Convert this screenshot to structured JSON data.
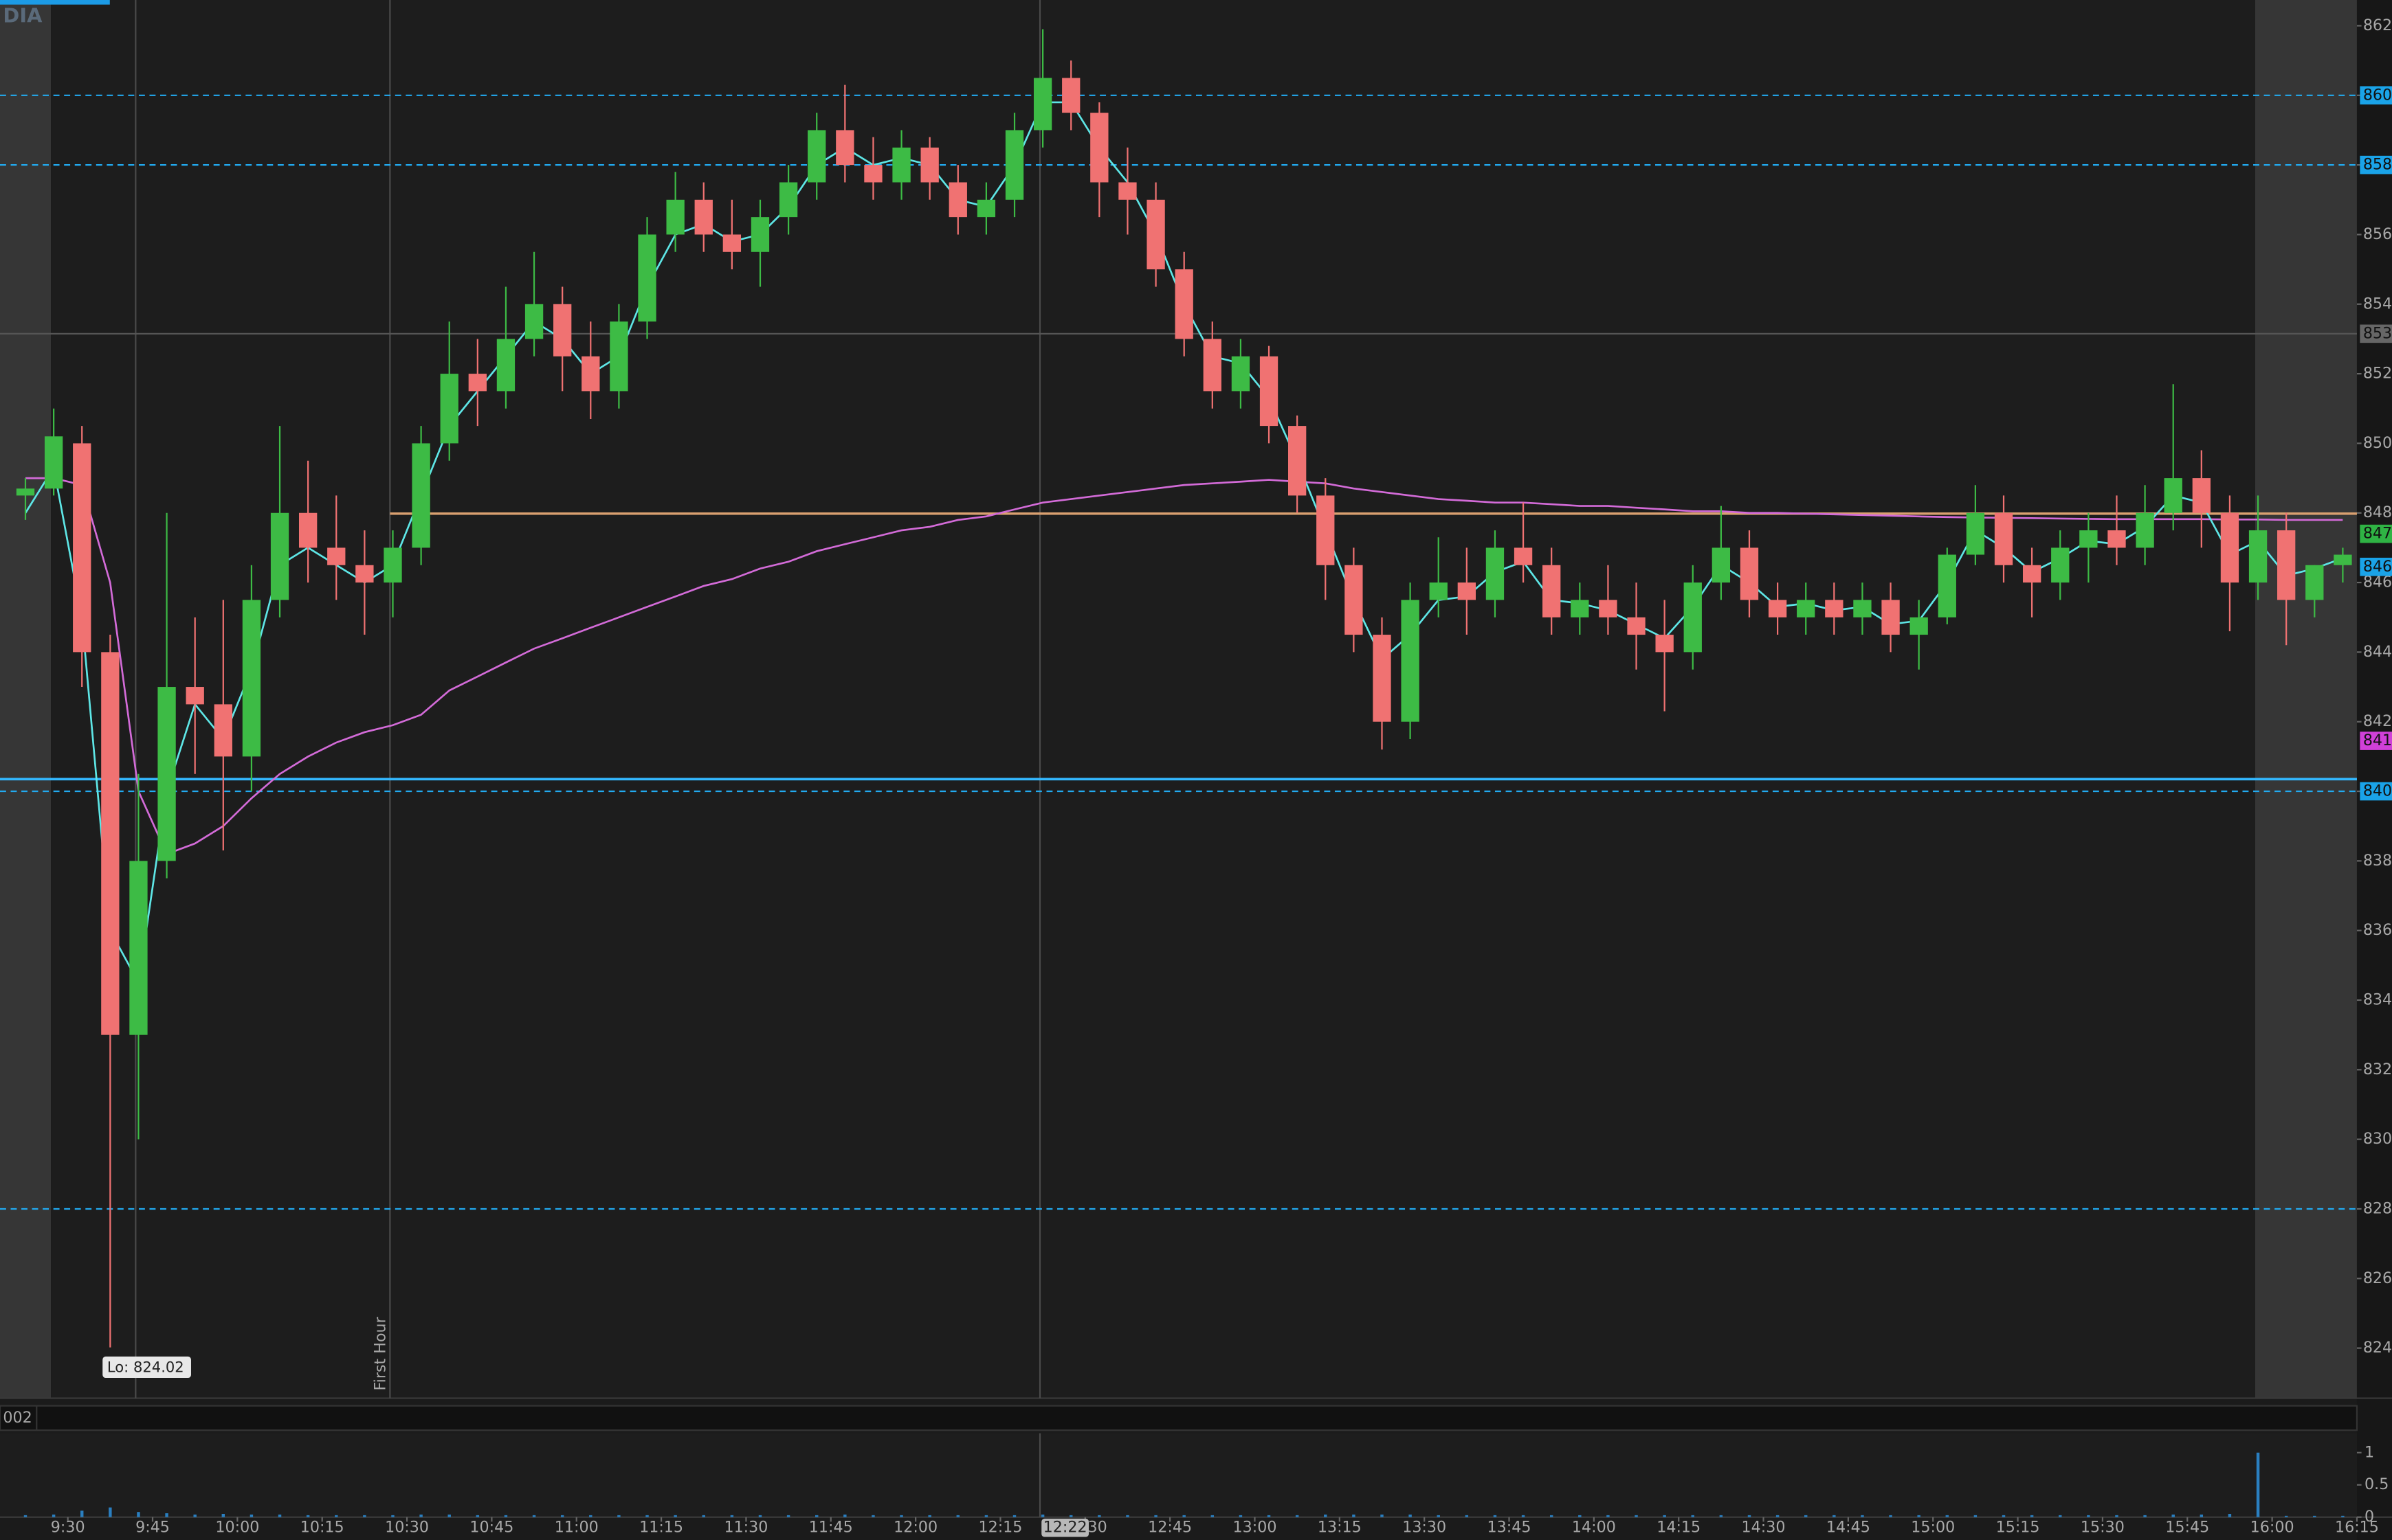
{
  "chart_data": {
    "type": "candlestick",
    "symbol": "DIA",
    "up_color": "#3dbb45",
    "down_color": "#f07272",
    "ema_color": "#5ee6e6",
    "vwap_color": "#d36bd8",
    "volume_color": "#2a7fc0",
    "xlim": [
      "9:18",
      "16:15"
    ],
    "xticks": [
      "9:30",
      "9:45",
      "10:00",
      "10:15",
      "10:30",
      "10:45",
      "11:00",
      "11:15",
      "11:30",
      "11:45",
      "12:00",
      "12:15",
      "12:30",
      "12:45",
      "13:00",
      "13:15",
      "13:30",
      "13:45",
      "14:00",
      "14:15",
      "14:30",
      "14:45",
      "15:00",
      "15:15",
      "15:30",
      "15:45",
      "16:00",
      "16:15"
    ],
    "ylim": [
      822.56,
      862.74
    ],
    "yticks": [
      824,
      826,
      828,
      830,
      832,
      834,
      836,
      838,
      840,
      842,
      844,
      846,
      848,
      850,
      852,
      854,
      856,
      858,
      860,
      862
    ],
    "volume_ylim": [
      0,
      1.3
    ],
    "volume_yticks": [
      0,
      0.5,
      1
    ],
    "shaded_ranges": [
      [
        "9:18",
        "9:27"
      ],
      [
        "15:57",
        "16:15"
      ]
    ],
    "levels": [
      {
        "value": 860,
        "color": "#22aaf0",
        "style": "dashed"
      },
      {
        "value": 858,
        "color": "#22aaf0",
        "style": "dashed"
      },
      {
        "value": 840,
        "color": "#22aaf0",
        "style": "dashed"
      },
      {
        "value": 828,
        "color": "#22aaf0",
        "style": "dashed"
      },
      {
        "value": 840.35,
        "color": "#33b8ff",
        "style": "solid"
      },
      {
        "value": 853.15,
        "color": "#555555",
        "style": "solid"
      },
      {
        "value": 847.98,
        "color": "#d9a070",
        "style": "solid",
        "from": "10:27"
      }
    ],
    "price_tags": [
      {
        "value": 860,
        "color": "#1aa3e8"
      },
      {
        "value": 858,
        "color": "#1aa3e8"
      },
      {
        "value": {
          "value": 853.15,
          "label": "853"
        },
        "color": "#666666"
      },
      {
        "value": {
          "value": 847.4,
          "label": "847"
        },
        "color": "#2fb344"
      },
      {
        "value": {
          "value": 846.45,
          "label": "846"
        },
        "color": "#1aa3e8"
      },
      {
        "value": {
          "value": 841.45,
          "label": "841"
        },
        "color": "#d040d8"
      },
      {
        "value": 840,
        "color": "#1aa3e8"
      }
    ],
    "vlines": [
      "9:42",
      "10:27",
      "12:22"
    ],
    "first_hour_label": "First Hour",
    "low_label": "Lo: 824.02",
    "crosshair_time": "12:22",
    "volume_label": "002",
    "candles": [
      {
        "x": "9:20",
        "open": 848.5,
        "high": 849,
        "low": 847.8,
        "close": 848.7,
        "ema": 848,
        "vwap": 849,
        "volume": 0.03
      },
      {
        "x": "9:25",
        "open": 848.7,
        "high": 851,
        "low": 848.5,
        "close": 850.2,
        "ema": 849.3,
        "vwap": 849,
        "volume": 0.04
      },
      {
        "x": "9:30",
        "open": 850,
        "high": 850.5,
        "low": 843,
        "close": 844,
        "ema": 845,
        "vwap": 848.8,
        "volume": 0.1
      },
      {
        "x": "9:35",
        "open": 844,
        "high": 844.5,
        "low": 824.02,
        "close": 833,
        "ema": 836,
        "vwap": 846,
        "volume": 0.15
      },
      {
        "x": "9:40",
        "open": 833,
        "high": 840.5,
        "low": 830,
        "close": 838,
        "ema": 834.5,
        "vwap": 840,
        "volume": 0.08
      },
      {
        "x": "9:45",
        "open": 838,
        "high": 848,
        "low": 837.5,
        "close": 843,
        "ema": 840,
        "vwap": 838.2,
        "volume": 0.06
      },
      {
        "x": "9:50",
        "open": 843,
        "high": 845,
        "low": 840.5,
        "close": 842.5,
        "ema": 842.5,
        "vwap": 838.5,
        "volume": 0.04
      },
      {
        "x": "9:55",
        "open": 842.5,
        "high": 845.5,
        "low": 838.3,
        "close": 841,
        "ema": 841.5,
        "vwap": 839,
        "volume": 0.05
      },
      {
        "x": "10:00",
        "open": 841,
        "high": 846.5,
        "low": 840,
        "close": 845.5,
        "ema": 843.5,
        "vwap": 839.8,
        "volume": 0.04
      },
      {
        "x": "10:05",
        "open": 845.5,
        "high": 850.5,
        "low": 845,
        "close": 848,
        "ema": 846.5,
        "vwap": 840.5,
        "volume": 0.04
      },
      {
        "x": "10:10",
        "open": 848,
        "high": 849.5,
        "low": 846,
        "close": 847,
        "ema": 847,
        "vwap": 841,
        "volume": 0.03
      },
      {
        "x": "10:15",
        "open": 847,
        "high": 848.5,
        "low": 845.5,
        "close": 846.5,
        "ema": 846.5,
        "vwap": 841.4,
        "volume": 0.03
      },
      {
        "x": "10:20",
        "open": 846.5,
        "high": 847.5,
        "low": 844.5,
        "close": 846,
        "ema": 846,
        "vwap": 841.7,
        "volume": 0.03
      },
      {
        "x": "10:25",
        "open": 846,
        "high": 847.5,
        "low": 845,
        "close": 847,
        "ema": 846.5,
        "vwap": 841.9,
        "volume": 0.03
      },
      {
        "x": "10:30",
        "open": 847,
        "high": 850.5,
        "low": 846.5,
        "close": 850,
        "ema": 848.5,
        "vwap": 842.2,
        "volume": 0.04
      },
      {
        "x": "10:35",
        "open": 850,
        "high": 853.5,
        "low": 849.5,
        "close": 852,
        "ema": 850.5,
        "vwap": 842.9,
        "volume": 0.04
      },
      {
        "x": "10:40",
        "open": 852,
        "high": 853,
        "low": 850.5,
        "close": 851.5,
        "ema": 851.5,
        "vwap": 843.3,
        "volume": 0.03
      },
      {
        "x": "10:45",
        "open": 851.5,
        "high": 854.5,
        "low": 851,
        "close": 853,
        "ema": 852.5,
        "vwap": 843.7,
        "volume": 0.03
      },
      {
        "x": "10:50",
        "open": 853,
        "high": 855.5,
        "low": 852.5,
        "close": 854,
        "ema": 853.5,
        "vwap": 844.1,
        "volume": 0.03
      },
      {
        "x": "10:55",
        "open": 854,
        "high": 854.5,
        "low": 851.5,
        "close": 852.5,
        "ema": 853,
        "vwap": 844.4,
        "volume": 0.03
      },
      {
        "x": "11:00",
        "open": 852.5,
        "high": 853.5,
        "low": 850.7,
        "close": 851.5,
        "ema": 852,
        "vwap": 844.7,
        "volume": 0.03
      },
      {
        "x": "11:05",
        "open": 851.5,
        "high": 854,
        "low": 851,
        "close": 853.5,
        "ema": 852.5,
        "vwap": 845,
        "volume": 0.03
      },
      {
        "x": "11:10",
        "open": 853.5,
        "high": 856.5,
        "low": 853,
        "close": 856,
        "ema": 854.5,
        "vwap": 845.3,
        "volume": 0.03
      },
      {
        "x": "11:15",
        "open": 856,
        "high": 857.8,
        "low": 855.5,
        "close": 857,
        "ema": 856,
        "vwap": 845.6,
        "volume": 0.03
      },
      {
        "x": "11:20",
        "open": 857,
        "high": 857.5,
        "low": 855.5,
        "close": 856,
        "ema": 856.3,
        "vwap": 845.9,
        "volume": 0.03
      },
      {
        "x": "11:25",
        "open": 856,
        "high": 857,
        "low": 855,
        "close": 855.5,
        "ema": 855.8,
        "vwap": 846.1,
        "volume": 0.03
      },
      {
        "x": "11:30",
        "open": 855.5,
        "high": 857,
        "low": 854.5,
        "close": 856.5,
        "ema": 856,
        "vwap": 846.4,
        "volume": 0.03
      },
      {
        "x": "11:35",
        "open": 856.5,
        "high": 858,
        "low": 856,
        "close": 857.5,
        "ema": 856.8,
        "vwap": 846.6,
        "volume": 0.03
      },
      {
        "x": "11:40",
        "open": 857.5,
        "high": 859.5,
        "low": 857,
        "close": 859,
        "ema": 858,
        "vwap": 846.9,
        "volume": 0.03
      },
      {
        "x": "11:45",
        "open": 859,
        "high": 860.3,
        "low": 857.5,
        "close": 858,
        "ema": 858.5,
        "vwap": 847.1,
        "volume": 0.04
      },
      {
        "x": "11:50",
        "open": 858,
        "high": 858.8,
        "low": 857,
        "close": 857.5,
        "ema": 858,
        "vwap": 847.3,
        "volume": 0.03
      },
      {
        "x": "11:55",
        "open": 857.5,
        "high": 859,
        "low": 857,
        "close": 858.5,
        "ema": 858.2,
        "vwap": 847.5,
        "volume": 0.03
      },
      {
        "x": "12:00",
        "open": 858.5,
        "high": 858.8,
        "low": 857,
        "close": 857.5,
        "ema": 858,
        "vwap": 847.6,
        "volume": 0.03
      },
      {
        "x": "12:05",
        "open": 857.5,
        "high": 858,
        "low": 856,
        "close": 856.5,
        "ema": 857,
        "vwap": 847.8,
        "volume": 0.03
      },
      {
        "x": "12:10",
        "open": 856.5,
        "high": 857.5,
        "low": 856,
        "close": 857,
        "ema": 856.8,
        "vwap": 847.9,
        "volume": 0.03
      },
      {
        "x": "12:15",
        "open": 857,
        "high": 859.5,
        "low": 856.5,
        "close": 859,
        "ema": 858,
        "vwap": 848.1,
        "volume": 0.03
      },
      {
        "x": "12:20",
        "open": 859,
        "high": 861.9,
        "low": 858.5,
        "close": 860.5,
        "ema": 859.8,
        "vwap": 848.3,
        "volume": 0.04
      },
      {
        "x": "12:25",
        "open": 860.5,
        "high": 861,
        "low": 859,
        "close": 859.5,
        "ema": 859.8,
        "vwap": 848.4,
        "volume": 0.03
      },
      {
        "x": "12:30",
        "open": 859.5,
        "high": 859.8,
        "low": 856.5,
        "close": 857.5,
        "ema": 858.5,
        "vwap": 848.5,
        "volume": 0.03
      },
      {
        "x": "12:35",
        "open": 857.5,
        "high": 858.5,
        "low": 856,
        "close": 857,
        "ema": 857.5,
        "vwap": 848.6,
        "volume": 0.03
      },
      {
        "x": "12:40",
        "open": 857,
        "high": 857.5,
        "low": 854.5,
        "close": 855,
        "ema": 856,
        "vwap": 848.7,
        "volume": 0.03
      },
      {
        "x": "12:45",
        "open": 855,
        "high": 855.5,
        "low": 852.5,
        "close": 853,
        "ema": 854,
        "vwap": 848.8,
        "volume": 0.03
      },
      {
        "x": "12:50",
        "open": 853,
        "high": 853.5,
        "low": 851,
        "close": 851.5,
        "ema": 852.5,
        "vwap": 848.85,
        "volume": 0.03
      },
      {
        "x": "12:55",
        "open": 851.5,
        "high": 853,
        "low": 851,
        "close": 852.5,
        "ema": 852.3,
        "vwap": 848.9,
        "volume": 0.03
      },
      {
        "x": "13:00",
        "open": 852.5,
        "high": 852.8,
        "low": 850,
        "close": 850.5,
        "ema": 851.3,
        "vwap": 848.95,
        "volume": 0.03
      },
      {
        "x": "13:05",
        "open": 850.5,
        "high": 850.8,
        "low": 848,
        "close": 848.5,
        "ema": 849.5,
        "vwap": 848.9,
        "volume": 0.03
      },
      {
        "x": "13:10",
        "open": 848.5,
        "high": 849,
        "low": 845.5,
        "close": 846.5,
        "ema": 847.5,
        "vwap": 848.85,
        "volume": 0.04
      },
      {
        "x": "13:15",
        "open": 846.5,
        "high": 847,
        "low": 844,
        "close": 844.5,
        "ema": 845.5,
        "vwap": 848.7,
        "volume": 0.04
      },
      {
        "x": "13:20",
        "open": 844.5,
        "high": 845,
        "low": 841.2,
        "close": 842,
        "ema": 843.8,
        "vwap": 848.6,
        "volume": 0.04
      },
      {
        "x": "13:25",
        "open": 842,
        "high": 846,
        "low": 841.5,
        "close": 845.5,
        "ema": 844.5,
        "vwap": 848.5,
        "volume": 0.04
      },
      {
        "x": "13:30",
        "open": 845.5,
        "high": 847.3,
        "low": 845,
        "close": 846,
        "ema": 845.5,
        "vwap": 848.4,
        "volume": 0.03
      },
      {
        "x": "13:35",
        "open": 846,
        "high": 847,
        "low": 844.5,
        "close": 845.5,
        "ema": 845.6,
        "vwap": 848.35,
        "volume": 0.03
      },
      {
        "x": "13:40",
        "open": 845.5,
        "high": 847.5,
        "low": 845,
        "close": 847,
        "ema": 846.3,
        "vwap": 848.3,
        "volume": 0.03
      },
      {
        "x": "13:45",
        "open": 847,
        "high": 848.3,
        "low": 846,
        "close": 846.5,
        "ema": 846.6,
        "vwap": 848.3,
        "volume": 0.03
      },
      {
        "x": "13:50",
        "open": 846.5,
        "high": 847,
        "low": 844.5,
        "close": 845,
        "ema": 845.5,
        "vwap": 848.25,
        "volume": 0.03
      },
      {
        "x": "13:55",
        "open": 845,
        "high": 846,
        "low": 844.5,
        "close": 845.5,
        "ema": 845.4,
        "vwap": 848.2,
        "volume": 0.03
      },
      {
        "x": "14:00",
        "open": 845.5,
        "high": 846.5,
        "low": 844.5,
        "close": 845,
        "ema": 845.2,
        "vwap": 848.2,
        "volume": 0.03
      },
      {
        "x": "14:05",
        "open": 845,
        "high": 846,
        "low": 843.5,
        "close": 844.5,
        "ema": 844.8,
        "vwap": 848.15,
        "volume": 0.03
      },
      {
        "x": "14:10",
        "open": 844.5,
        "high": 845.5,
        "low": 842.3,
        "close": 844,
        "ema": 844.4,
        "vwap": 848.1,
        "volume": 0.03
      },
      {
        "x": "14:15",
        "open": 844,
        "high": 846.5,
        "low": 843.5,
        "close": 846,
        "ema": 845.3,
        "vwap": 848.05,
        "volume": 0.03
      },
      {
        "x": "14:20",
        "open": 846,
        "high": 848.2,
        "low": 845.5,
        "close": 847,
        "ema": 846.5,
        "vwap": 848.05,
        "volume": 0.03
      },
      {
        "x": "14:25",
        "open": 847,
        "high": 847.5,
        "low": 845,
        "close": 845.5,
        "ema": 846,
        "vwap": 848,
        "volume": 0.03
      },
      {
        "x": "14:30",
        "open": 845.5,
        "high": 846,
        "low": 844.5,
        "close": 845,
        "ema": 845.3,
        "vwap": 848,
        "volume": 0.03
      },
      {
        "x": "14:35",
        "open": 845,
        "high": 846,
        "low": 844.5,
        "close": 845.5,
        "ema": 845.4,
        "vwap": 847.98,
        "volume": 0.03
      },
      {
        "x": "14:40",
        "open": 845.5,
        "high": 846,
        "low": 844.5,
        "close": 845,
        "ema": 845.2,
        "vwap": 847.96,
        "volume": 0.03
      },
      {
        "x": "14:45",
        "open": 845,
        "high": 846,
        "low": 844.5,
        "close": 845.5,
        "ema": 845.3,
        "vwap": 847.94,
        "volume": 0.03
      },
      {
        "x": "14:50",
        "open": 845.5,
        "high": 846,
        "low": 844,
        "close": 844.5,
        "ema": 844.8,
        "vwap": 847.92,
        "volume": 0.03
      },
      {
        "x": "14:55",
        "open": 844.5,
        "high": 845.5,
        "low": 843.5,
        "close": 845,
        "ema": 844.9,
        "vwap": 847.9,
        "volume": 0.03
      },
      {
        "x": "15:00",
        "open": 845,
        "high": 847,
        "low": 844.8,
        "close": 846.8,
        "ema": 846,
        "vwap": 847.88,
        "volume": 0.03
      },
      {
        "x": "15:05",
        "open": 846.8,
        "high": 848.8,
        "low": 846.5,
        "close": 848,
        "ema": 847.5,
        "vwap": 847.87,
        "volume": 0.03
      },
      {
        "x": "15:10",
        "open": 848,
        "high": 848.5,
        "low": 846,
        "close": 846.5,
        "ema": 847,
        "vwap": 847.86,
        "volume": 0.03
      },
      {
        "x": "15:15",
        "open": 846.5,
        "high": 847,
        "low": 845,
        "close": 846,
        "ema": 846.3,
        "vwap": 847.85,
        "volume": 0.03
      },
      {
        "x": "15:20",
        "open": 846,
        "high": 847.5,
        "low": 845.5,
        "close": 847,
        "ema": 846.7,
        "vwap": 847.84,
        "volume": 0.03
      },
      {
        "x": "15:25",
        "open": 847,
        "high": 848,
        "low": 846,
        "close": 847.5,
        "ema": 847.2,
        "vwap": 847.83,
        "volume": 0.03
      },
      {
        "x": "15:30",
        "open": 847.5,
        "high": 848.5,
        "low": 846.5,
        "close": 847,
        "ema": 847.1,
        "vwap": 847.82,
        "volume": 0.03
      },
      {
        "x": "15:35",
        "open": 847,
        "high": 848.8,
        "low": 846.5,
        "close": 848,
        "ema": 847.6,
        "vwap": 847.82,
        "volume": 0.03
      },
      {
        "x": "15:40",
        "open": 848,
        "high": 851.7,
        "low": 847.5,
        "close": 849,
        "ema": 848.5,
        "vwap": 847.82,
        "volume": 0.04
      },
      {
        "x": "15:45",
        "open": 849,
        "high": 849.8,
        "low": 847,
        "close": 848,
        "ema": 848.3,
        "vwap": 847.82,
        "volume": 0.04
      },
      {
        "x": "15:50",
        "open": 848,
        "high": 848.5,
        "low": 844.6,
        "close": 846,
        "ema": 846.8,
        "vwap": 847.81,
        "volume": 0.05
      },
      {
        "x": "15:55",
        "open": 846,
        "high": 848.5,
        "low": 845.5,
        "close": 847.5,
        "ema": 847.2,
        "vwap": 847.81,
        "volume": 1
      },
      {
        "x": "16:00",
        "open": 847.5,
        "high": 848,
        "low": 844.2,
        "close": 845.5,
        "ema": 846.2,
        "vwap": 847.8,
        "volume": 0.02
      },
      {
        "x": "16:05",
        "open": 845.5,
        "high": 846.5,
        "low": 845,
        "close": 846.5,
        "ema": 846.4,
        "vwap": 847.8,
        "volume": 0.02
      },
      {
        "x": "16:10",
        "open": 846.5,
        "high": 847,
        "low": 846,
        "close": 846.8,
        "ema": 846.7,
        "vwap": 847.8,
        "volume": 0.02
      }
    ]
  }
}
